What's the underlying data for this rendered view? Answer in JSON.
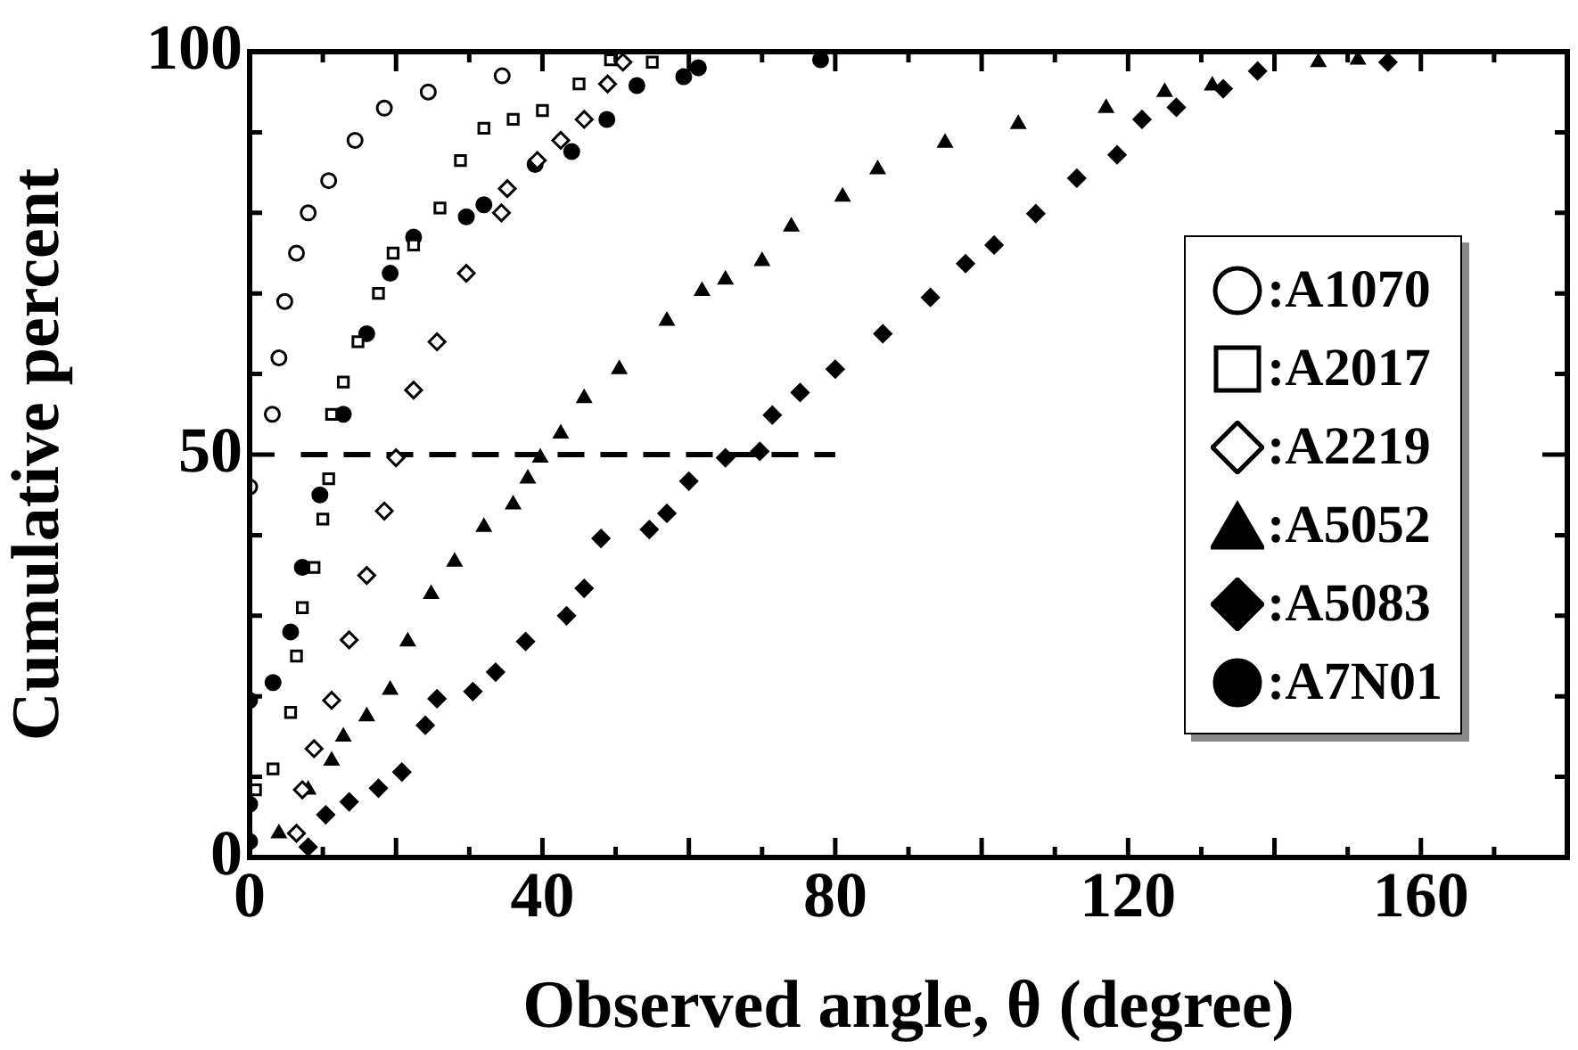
{
  "chart_data": {
    "type": "scatter",
    "xlabel": "Observed angle, θ (degree)",
    "ylabel": "Cumulative percent",
    "xlim": [
      0,
      180
    ],
    "ylim": [
      0,
      100
    ],
    "xticks": [
      0,
      {
        "value": 10,
        "label": null
      },
      {
        "value": 20,
        "label": null
      },
      {
        "value": 30,
        "label": null
      },
      40,
      {
        "value": 50,
        "label": null
      },
      {
        "value": 60,
        "label": null
      },
      {
        "value": 70,
        "label": null
      },
      80,
      {
        "value": 90,
        "label": null
      },
      {
        "value": 100,
        "label": null
      },
      {
        "value": 110,
        "label": null
      },
      120,
      {
        "value": 130,
        "label": null
      },
      {
        "value": 140,
        "label": null
      },
      {
        "value": 150,
        "label": null
      },
      160,
      {
        "value": 170,
        "label": null
      }
    ],
    "yticks": [
      0,
      {
        "value": 10,
        "label": null
      },
      {
        "value": 20,
        "label": null
      },
      {
        "value": 30,
        "label": null
      },
      {
        "value": 40,
        "label": null
      },
      50,
      {
        "value": 60,
        "label": null
      },
      {
        "value": 70,
        "label": null
      },
      {
        "value": 80,
        "label": null
      },
      {
        "value": 90,
        "label": null
      },
      100
    ],
    "grid": false,
    "legend": "right",
    "series": [
      {
        "name": ":A1070",
        "color": "#ffffff",
        "marker": "circle",
        "x": [
          0,
          3.1,
          4,
          4.8,
          6.4,
          8,
          10.8,
          14.4,
          18.4,
          24.4,
          34.5
        ],
        "values": [
          46,
          55,
          62,
          69,
          75,
          80,
          84,
          89,
          93,
          95,
          97
        ]
      },
      {
        "name": ":A2017",
        "color": "#ffffff",
        "marker": "square",
        "x": [
          0.8,
          3.2,
          5.6,
          6.4,
          7.2,
          8.8,
          10,
          10.8,
          11.2,
          12.8,
          14.8,
          17.6,
          19.6,
          22.4,
          26,
          28.8,
          32,
          36,
          40,
          45,
          49.3,
          55
        ],
        "values": [
          8.4,
          11,
          18,
          25,
          31,
          36,
          42,
          47,
          55,
          59,
          64,
          70,
          75,
          76,
          80.6,
          86.5,
          90.5,
          91.6,
          92.7,
          96,
          99,
          98.7
        ]
      },
      {
        "name": ":A2219",
        "color": "#ffffff",
        "marker": "diamond",
        "x": [
          6.4,
          7.2,
          8.8,
          11.2,
          13.6,
          16,
          18.4,
          20,
          22.4,
          25.6,
          29.6,
          34.4,
          35.2,
          39.3,
          42.5,
          45.7,
          48.9,
          51
        ],
        "values": [
          3,
          8.4,
          13.5,
          19.5,
          27,
          35,
          43,
          49.6,
          58,
          64,
          72.5,
          80,
          83,
          86.5,
          89,
          91.6,
          96,
          98.7
        ]
      },
      {
        "name": ":A5052",
        "color": "#000000",
        "marker": "triangle",
        "x": [
          4,
          8,
          11.2,
          12.8,
          16,
          19.2,
          21.6,
          24.8,
          28,
          32,
          36,
          38,
          39.7,
          42.5,
          45.7,
          50.5,
          57,
          61.8,
          65,
          70,
          74,
          81,
          85.8,
          95,
          105,
          117,
          125,
          131.5,
          146,
          151.4
        ],
        "values": [
          3,
          8.4,
          12,
          15,
          17.5,
          20.8,
          26.8,
          32.7,
          36.7,
          41,
          43.8,
          47,
          49.6,
          52.6,
          57,
          60.6,
          66.6,
          70.3,
          71.7,
          74,
          78.3,
          82,
          85.4,
          88.7,
          91,
          93,
          95,
          95.8,
          98.7,
          99
        ]
      },
      {
        "name": ":A5083",
        "color": "#000000",
        "marker": "diamond",
        "x": [
          8,
          10.4,
          13.6,
          17.6,
          20.8,
          24,
          25.6,
          30.5,
          33.6,
          37.7,
          43.3,
          45.7,
          48,
          54.6,
          57,
          60,
          65,
          69.7,
          71.4,
          75.2,
          80,
          86.5,
          93,
          97.8,
          101.7,
          107.4,
          113,
          118.5,
          121.9,
          126.6,
          133,
          137.7,
          155.5
        ],
        "values": [
          1.3,
          5.3,
          6.9,
          8.6,
          10.6,
          16.4,
          19.7,
          20.6,
          23,
          26.8,
          30,
          33.4,
          39.6,
          40.7,
          42.7,
          46.7,
          49.6,
          50.4,
          54.9,
          57.7,
          60.6,
          65,
          69.5,
          73.7,
          76,
          79.9,
          84.3,
          87.2,
          91.6,
          93.1,
          95.4,
          97.6,
          98.7
        ]
      },
      {
        "name": ":A7N01",
        "color": "#000000",
        "marker": "circle",
        "x": [
          0,
          0,
          0,
          3.2,
          5.6,
          7.2,
          9.6,
          12.8,
          16,
          19.2,
          22.4,
          29.6,
          32,
          39,
          44,
          48.8,
          52.9,
          59.3,
          61.3,
          78
        ],
        "values": [
          2,
          6.6,
          19.5,
          21.7,
          28,
          36,
          45,
          55,
          65,
          72.5,
          77,
          79.5,
          81,
          86,
          87.6,
          91.6,
          95.8,
          96.9,
          98,
          99
        ]
      },
      {
        "type": "line",
        "color": "#000000",
        "marker": "none",
        "line_style": "dashed",
        "x": [
          7,
          80
        ],
        "values": [
          50,
          50
        ]
      }
    ]
  }
}
